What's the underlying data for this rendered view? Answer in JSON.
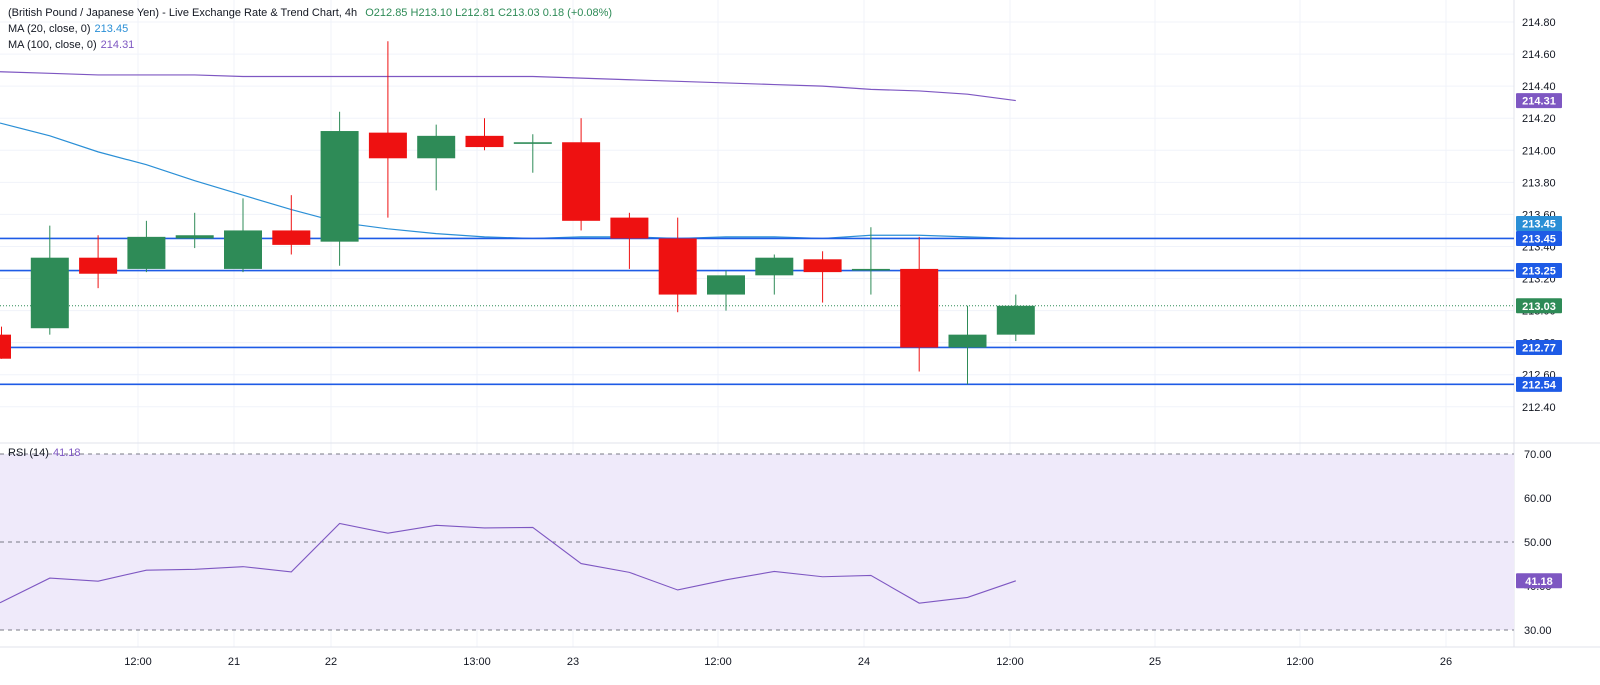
{
  "header": {
    "title": "(British Pound / Japanese Yen) - Live Exchange Rate & Trend Chart, 4h",
    "open_label": "O",
    "open": "212.85",
    "high_label": "H",
    "high": "213.10",
    "low_label": "L",
    "low": "212.81",
    "close_label": "C",
    "close": "213.03",
    "change": "0.18 (+0.08%)"
  },
  "indicators": {
    "ma20": {
      "label": "MA (20, close, 0)",
      "value": "213.45",
      "color": "#2a8fd6"
    },
    "ma100": {
      "label": "MA (100, close, 0)",
      "value": "214.31",
      "color": "#7e57c2"
    },
    "rsi": {
      "label": "RSI (14)",
      "value": "41.18",
      "color": "#7e57c2"
    }
  },
  "colors": {
    "up": "#2e8b57",
    "down": "#ee1111",
    "level": "#1e5be6",
    "rsi_band": "#efeafa"
  },
  "chart_data": {
    "type": "candlestick",
    "timeframe": "4h",
    "ylim": [
      212.3,
      214.9
    ],
    "price_ticks": [
      "212.40",
      "212.60",
      "212.80",
      "213.00",
      "213.20",
      "213.40",
      "213.60",
      "213.80",
      "214.00",
      "214.20",
      "214.40",
      "214.60",
      "214.80"
    ],
    "x_labels": [
      "12:00",
      "21",
      "22",
      "13:00",
      "23",
      "12:00",
      "24",
      "12:00",
      "25",
      "12:00",
      "26"
    ],
    "candles": [
      {
        "o": 212.85,
        "h": 212.9,
        "l": 212.7,
        "c": 212.7
      },
      {
        "o": 212.89,
        "h": 213.53,
        "l": 212.85,
        "c": 213.33
      },
      {
        "o": 213.33,
        "h": 213.47,
        "l": 213.14,
        "c": 213.23
      },
      {
        "o": 213.26,
        "h": 213.56,
        "l": 213.24,
        "c": 213.46
      },
      {
        "o": 213.45,
        "h": 213.61,
        "l": 213.39,
        "c": 213.47
      },
      {
        "o": 213.26,
        "h": 213.7,
        "l": 213.24,
        "c": 213.5
      },
      {
        "o": 213.5,
        "h": 213.72,
        "l": 213.35,
        "c": 213.41
      },
      {
        "o": 213.43,
        "h": 214.24,
        "l": 213.28,
        "c": 214.12
      },
      {
        "o": 214.11,
        "h": 214.68,
        "l": 213.58,
        "c": 213.95
      },
      {
        "o": 213.95,
        "h": 214.16,
        "l": 213.75,
        "c": 214.09
      },
      {
        "o": 214.09,
        "h": 214.2,
        "l": 214.0,
        "c": 214.02
      },
      {
        "o": 214.04,
        "h": 214.1,
        "l": 213.86,
        "c": 214.05
      },
      {
        "o": 214.05,
        "h": 214.2,
        "l": 213.5,
        "c": 213.56
      },
      {
        "o": 213.58,
        "h": 213.61,
        "l": 213.26,
        "c": 213.45
      },
      {
        "o": 213.45,
        "h": 213.58,
        "l": 212.99,
        "c": 213.1
      },
      {
        "o": 213.1,
        "h": 213.25,
        "l": 213.0,
        "c": 213.22
      },
      {
        "o": 213.22,
        "h": 213.35,
        "l": 213.1,
        "c": 213.33
      },
      {
        "o": 213.32,
        "h": 213.37,
        "l": 213.05,
        "c": 213.24
      },
      {
        "o": 213.25,
        "h": 213.52,
        "l": 213.1,
        "c": 213.26
      },
      {
        "o": 213.26,
        "h": 213.46,
        "l": 212.62,
        "c": 212.77
      },
      {
        "o": 212.77,
        "h": 213.03,
        "l": 212.54,
        "c": 212.85
      },
      {
        "o": 212.85,
        "h": 213.1,
        "l": 212.81,
        "c": 213.03
      }
    ],
    "ma20": [
      214.17,
      214.09,
      213.99,
      213.91,
      213.81,
      213.72,
      213.63,
      213.55,
      213.51,
      213.48,
      213.46,
      213.45,
      213.46,
      213.46,
      213.45,
      213.46,
      213.46,
      213.45,
      213.47,
      213.47,
      213.46,
      213.45
    ],
    "ma100": [
      214.49,
      214.48,
      214.47,
      214.47,
      214.47,
      214.46,
      214.46,
      214.46,
      214.46,
      214.46,
      214.46,
      214.46,
      214.45,
      214.44,
      214.43,
      214.42,
      214.41,
      214.4,
      214.38,
      214.37,
      214.35,
      214.31
    ],
    "levels": [
      "213.45",
      "213.25",
      "212.77",
      "212.54"
    ],
    "last_price_label": "213.03",
    "ma20_label": "213.45",
    "ma100_label": "214.31",
    "rsi": {
      "ylim": [
        25,
        73
      ],
      "ticks": [
        "30.00",
        "40.00",
        "50.00",
        "60.00",
        "70.00"
      ],
      "bands": [
        30,
        70
      ],
      "midline": 50,
      "values": [
        36.2,
        41.8,
        41.1,
        43.6,
        43.8,
        44.4,
        43.2,
        54.2,
        52.0,
        53.8,
        53.2,
        53.3,
        45.1,
        43.1,
        39.1,
        41.4,
        43.3,
        42.1,
        42.4,
        36.1,
        37.4,
        41.18
      ],
      "label": "41.18"
    }
  }
}
